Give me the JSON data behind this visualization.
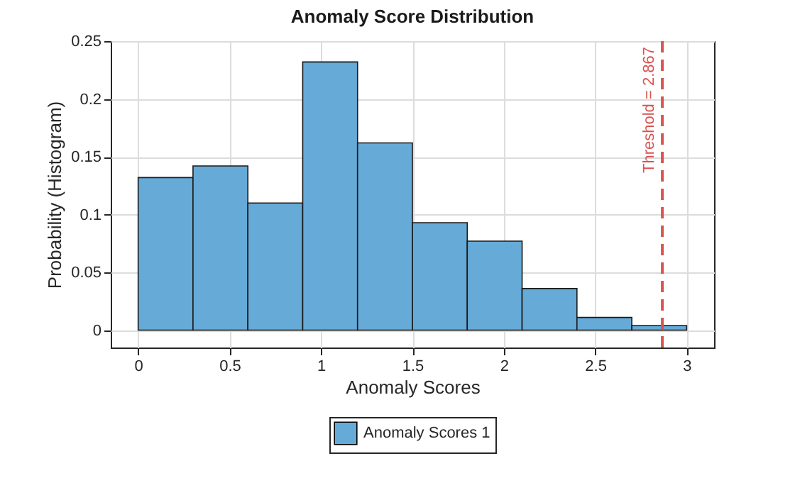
{
  "chart_data": {
    "type": "histogram",
    "title": "Anomaly Score Distribution",
    "xlabel": "Anomaly Scores",
    "ylabel": "Probability (Histogram)",
    "bins": [
      0,
      0.3,
      0.6,
      0.9,
      1.2,
      1.5,
      1.8,
      2.1,
      2.4,
      2.7,
      3.0
    ],
    "series": [
      {
        "name": "Anomaly Scores 1",
        "color": "#66aad7",
        "values": [
          0.132,
          0.142,
          0.11,
          0.232,
          0.162,
          0.093,
          0.077,
          0.036,
          0.011,
          0.004
        ]
      }
    ],
    "xlim": [
      -0.15,
      3.15
    ],
    "xticks": [
      0,
      0.5,
      1,
      1.5,
      2,
      2.5,
      3
    ],
    "ylim": [
      -0.015,
      0.25
    ],
    "yticks": [
      0,
      0.05,
      0.1,
      0.15,
      0.2,
      0.25
    ],
    "ref_lines": [
      {
        "axis": "x",
        "value": 2.867,
        "label": "Threshold = 2.867",
        "color": "#d9534f",
        "line_style": "dashed"
      }
    ],
    "grid": true,
    "legend": "bottom"
  }
}
